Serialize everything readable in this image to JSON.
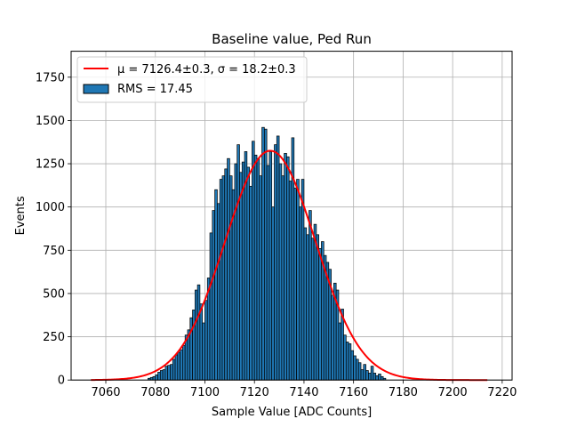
{
  "chart_data": {
    "type": "bar",
    "title": "Baseline value, Ped Run",
    "xlabel": "Sample Value [ADC Counts]",
    "ylabel": "Events",
    "xlim": [
      7046,
      7224
    ],
    "ylim": [
      0,
      1900
    ],
    "xticks": [
      7060,
      7080,
      7100,
      7120,
      7140,
      7160,
      7180,
      7200,
      7220
    ],
    "yticks": [
      0,
      250,
      500,
      750,
      1000,
      1250,
      1500,
      1750
    ],
    "grid": true,
    "legend_position": "top-left",
    "histogram": {
      "name": "RMS = 17.45",
      "color": "#1f77b4",
      "edge_color": "#000000",
      "bin_start": 7077,
      "bin_width": 1,
      "counts": [
        10,
        15,
        20,
        30,
        45,
        55,
        60,
        80,
        85,
        90,
        120,
        145,
        160,
        175,
        200,
        260,
        290,
        360,
        405,
        520,
        550,
        440,
        330,
        460,
        590,
        850,
        980,
        1100,
        1020,
        1160,
        1180,
        1220,
        1280,
        1180,
        1100,
        1250,
        1360,
        1200,
        1260,
        1320,
        1230,
        1120,
        1380,
        1300,
        1280,
        1180,
        1460,
        1450,
        1240,
        1320,
        1000,
        1360,
        1410,
        1250,
        1180,
        1310,
        1290,
        1150,
        1400,
        1110,
        1160,
        1000,
        1160,
        880,
        840,
        980,
        820,
        900,
        840,
        760,
        800,
        720,
        680,
        640,
        490,
        560,
        520,
        330,
        410,
        260,
        220,
        210,
        170,
        140,
        120,
        100,
        60,
        90,
        55,
        40,
        80,
        40,
        25,
        35,
        20,
        10
      ]
    },
    "fit": {
      "name": "μ = 7126.4±0.3, σ = 18.2±0.3",
      "color": "#ff0000",
      "x_range": [
        7054,
        7214
      ],
      "mu": 7126.4,
      "sigma": 18.2,
      "amplitude": 1325
    }
  }
}
